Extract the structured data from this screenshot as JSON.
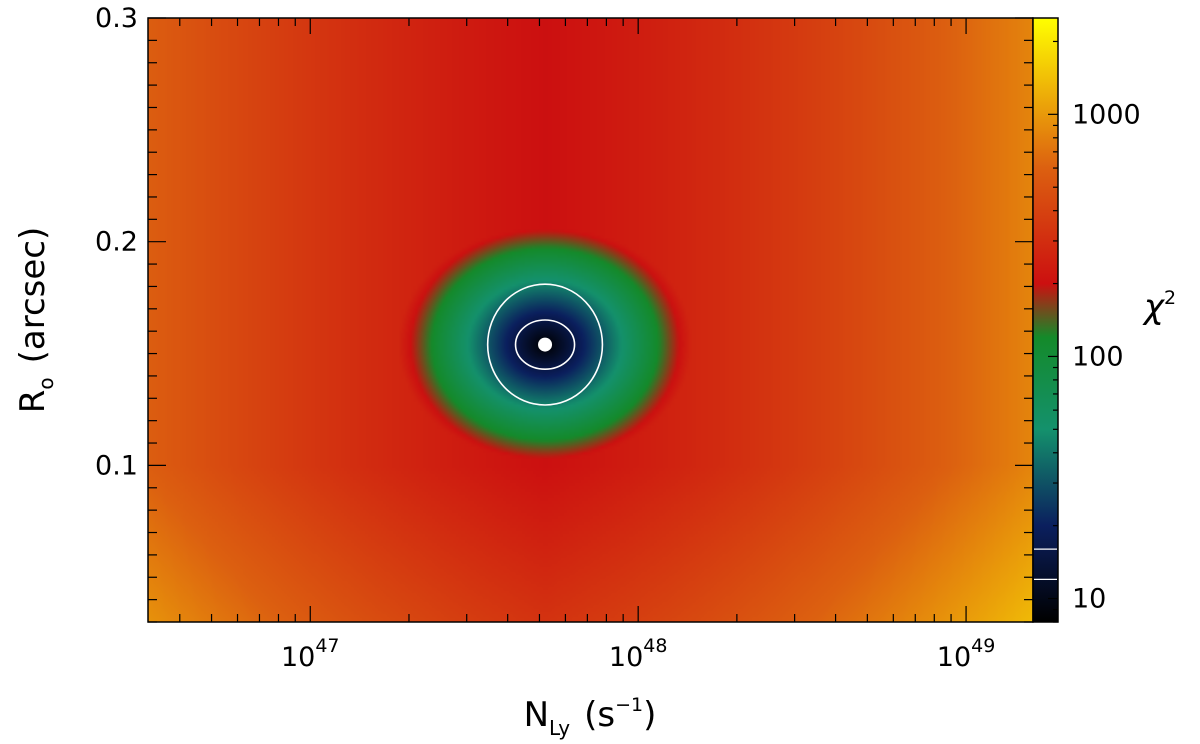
{
  "chart_data": {
    "type": "heatmap",
    "title": "",
    "xlabel": {
      "base": "N",
      "sub": "Ly",
      "units": "(s",
      "units_sup": "−1",
      "units_end": ")"
    },
    "ylabel": {
      "base": "R",
      "sub": "o",
      "units": "(arcsec)"
    },
    "colorbar_label": {
      "base": "χ",
      "sup": "2"
    },
    "x_scale": "log",
    "x_range": [
      3.2e+46,
      1.6e+49
    ],
    "y_range": [
      0.03,
      0.3
    ],
    "x_ticks": [
      {
        "value": 1e+47,
        "base": "10",
        "exp": "47"
      },
      {
        "value": 1e+48,
        "base": "10",
        "exp": "48"
      },
      {
        "value": 1e+49,
        "base": "10",
        "exp": "49"
      }
    ],
    "y_ticks": [
      {
        "value": 0.1,
        "label": "0.1"
      },
      {
        "value": 0.2,
        "label": "0.2"
      },
      {
        "value": 0.3,
        "label": "0.3"
      }
    ],
    "colorbar_scale": "log",
    "colorbar_range": [
      8,
      2500
    ],
    "colorbar_ticks": [
      {
        "value": 10,
        "label": "10"
      },
      {
        "value": 100,
        "label": "100"
      },
      {
        "value": 1000,
        "label": "1000"
      }
    ],
    "colorbar_marks": [
      12,
      16
    ],
    "colormap": [
      {
        "value": 8,
        "color": "#000000"
      },
      {
        "value": 20,
        "color": "#0b1f5e"
      },
      {
        "value": 50,
        "color": "#14916c"
      },
      {
        "value": 120,
        "color": "#148a2a"
      },
      {
        "value": 200,
        "color": "#cc1010"
      },
      {
        "value": 600,
        "color": "#dc6010"
      },
      {
        "value": 2500,
        "color": "#ffff00"
      }
    ],
    "minimum": {
      "x": 5.2e+47,
      "y": 0.154,
      "chi2": 8
    },
    "contours": [
      {
        "level": 16,
        "semi_axis_dex": 0.09,
        "semi_axis_y": 0.011,
        "color": "#ffffff"
      },
      {
        "level": 30,
        "semi_axis_dex": 0.175,
        "semi_axis_y": 0.027,
        "color": "#ffffff"
      }
    ]
  }
}
